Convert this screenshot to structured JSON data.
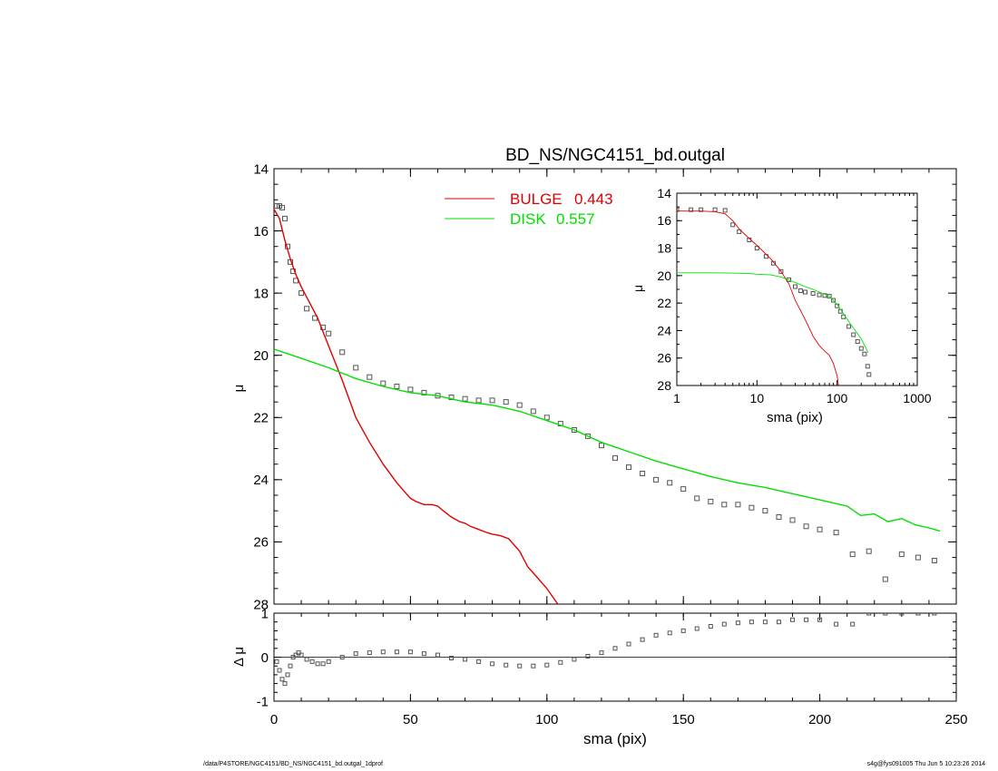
{
  "footer": {
    "left": "/data/P4STORE/NGC4151/BD_NS/NGC4151_bd.outgal_1dprof",
    "right": "s4g@fys091005  Thu Jun  5 10:23:26 2014"
  },
  "colors": {
    "bulge": "#e00000",
    "disk": "#00e000",
    "data": "#555555",
    "axis": "#000000"
  },
  "chart_data": [
    {
      "panel": "main",
      "type": "line",
      "title": "BD_NS/NGC4151_bd.outgal",
      "xlabel": "",
      "ylabel": "μ",
      "xlim": [
        0,
        250
      ],
      "ylim": [
        28,
        14
      ],
      "x_ticks": [
        0,
        50,
        100,
        150,
        200,
        250
      ],
      "y_ticks": [
        14,
        16,
        18,
        20,
        22,
        24,
        26,
        28
      ],
      "legend": [
        {
          "name": "BULGE",
          "value": "0.443",
          "color": "#e00000"
        },
        {
          "name": "DISK",
          "value": "0.557",
          "color": "#00e000"
        }
      ],
      "legend_position": "top-center",
      "series": [
        {
          "name": "data",
          "kind": "points",
          "x": [
            1,
            2,
            3,
            4,
            5,
            6,
            7,
            8,
            10,
            12,
            15,
            18,
            20,
            25,
            30,
            35,
            40,
            45,
            50,
            55,
            60,
            65,
            70,
            75,
            80,
            85,
            90,
            95,
            100,
            105,
            110,
            115,
            120,
            125,
            130,
            135,
            140,
            145,
            150,
            155,
            160,
            165,
            170,
            175,
            180,
            185,
            190,
            195,
            200,
            206,
            212,
            218,
            224,
            230,
            236,
            242
          ],
          "y": [
            15.2,
            15.2,
            15.25,
            15.6,
            16.5,
            17.0,
            17.3,
            17.6,
            18.0,
            18.5,
            18.8,
            19.1,
            19.3,
            19.9,
            20.4,
            20.7,
            20.9,
            21.0,
            21.1,
            21.2,
            21.3,
            21.35,
            21.4,
            21.45,
            21.45,
            21.5,
            21.6,
            21.8,
            22.0,
            22.2,
            22.4,
            22.6,
            22.9,
            23.3,
            23.6,
            23.8,
            24.0,
            24.1,
            24.3,
            24.6,
            24.7,
            24.8,
            24.8,
            24.9,
            25.0,
            25.2,
            25.3,
            25.5,
            25.6,
            25.7,
            26.4,
            26.3,
            27.2,
            26.4,
            26.5,
            26.6
          ]
        },
        {
          "name": "BULGE",
          "kind": "line",
          "color": "#e00000",
          "x": [
            0,
            2,
            4,
            6,
            8,
            10,
            13,
            16,
            20,
            25,
            30,
            35,
            40,
            45,
            50,
            52,
            55,
            58,
            60,
            62,
            65,
            68,
            70,
            72,
            75,
            78,
            80,
            83,
            86,
            90,
            93,
            96,
            100,
            104
          ],
          "y": [
            15.3,
            15.6,
            16.3,
            16.9,
            17.4,
            17.8,
            18.3,
            18.8,
            19.7,
            20.8,
            22.0,
            22.8,
            23.5,
            24.1,
            24.6,
            24.7,
            24.8,
            24.8,
            24.85,
            25.0,
            25.2,
            25.35,
            25.4,
            25.5,
            25.6,
            25.7,
            25.75,
            25.8,
            25.9,
            26.3,
            26.8,
            27.1,
            27.5,
            28.0
          ]
        },
        {
          "name": "DISK",
          "kind": "line",
          "color": "#00e000",
          "x": [
            0,
            10,
            20,
            30,
            40,
            50,
            60,
            70,
            80,
            90,
            100,
            110,
            120,
            130,
            140,
            150,
            160,
            170,
            180,
            190,
            200,
            205,
            210,
            215,
            220,
            225,
            230,
            235,
            240,
            244
          ],
          "y": [
            19.8,
            20.1,
            20.4,
            20.75,
            21.0,
            21.2,
            21.3,
            21.5,
            21.6,
            21.8,
            22.1,
            22.4,
            22.8,
            23.1,
            23.4,
            23.65,
            23.9,
            24.1,
            24.25,
            24.45,
            24.65,
            24.75,
            24.85,
            25.15,
            25.1,
            25.35,
            25.25,
            25.45,
            25.55,
            25.65
          ]
        }
      ]
    },
    {
      "panel": "inset",
      "type": "line",
      "xlabel": "sma (pix)",
      "ylabel": "μ",
      "xscale": "log",
      "xlim": [
        1,
        1000
      ],
      "ylim": [
        28,
        14
      ],
      "x_ticks": [
        1,
        10,
        100,
        1000
      ],
      "y_ticks": [
        14,
        16,
        18,
        20,
        22,
        24,
        26,
        28
      ],
      "series": [
        {
          "name": "data",
          "kind": "points",
          "x": [
            1,
            1.5,
            2,
            3,
            4,
            5,
            6,
            8,
            10,
            13,
            16,
            20,
            25,
            30,
            35,
            40,
            50,
            60,
            70,
            80,
            90,
            100,
            110,
            120,
            140,
            160,
            180,
            200,
            220,
            240,
            250
          ],
          "y": [
            15.2,
            15.2,
            15.2,
            15.2,
            15.25,
            16.3,
            16.8,
            17.4,
            18.0,
            18.6,
            19.1,
            19.7,
            20.3,
            20.8,
            21.1,
            21.2,
            21.3,
            21.4,
            21.45,
            21.5,
            21.8,
            22.2,
            22.6,
            23.0,
            23.7,
            24.3,
            24.8,
            25.3,
            25.7,
            26.6,
            27.2
          ]
        },
        {
          "name": "BULGE",
          "kind": "line",
          "color": "#e00000",
          "x": [
            1,
            2,
            3,
            4,
            5,
            6,
            8,
            10,
            15,
            20,
            25,
            30,
            40,
            50,
            60,
            70,
            80,
            90,
            100,
            104
          ],
          "y": [
            15.3,
            15.3,
            15.35,
            15.5,
            16.0,
            16.6,
            17.3,
            17.8,
            18.8,
            19.7,
            20.6,
            21.8,
            23.2,
            24.4,
            25.1,
            25.5,
            25.8,
            26.4,
            27.3,
            28.0
          ]
        },
        {
          "name": "DISK",
          "kind": "line",
          "color": "#00e000",
          "x": [
            1,
            2,
            3,
            5,
            8,
            10,
            15,
            20,
            30,
            40,
            50,
            60,
            80,
            100,
            150,
            200,
            244
          ],
          "y": [
            19.8,
            19.8,
            19.8,
            19.82,
            19.85,
            19.9,
            19.95,
            20.1,
            20.5,
            20.8,
            21.0,
            21.2,
            21.5,
            22.1,
            23.6,
            24.6,
            25.6
          ]
        }
      ]
    },
    {
      "panel": "residual",
      "type": "scatter",
      "xlabel": "sma (pix)",
      "ylabel": "Δ μ",
      "xlim": [
        0,
        250
      ],
      "ylim": [
        -1,
        1
      ],
      "x_ticks": [
        0,
        50,
        100,
        150,
        200,
        250
      ],
      "y_ticks": [
        -1,
        0,
        1
      ],
      "zero_line": true,
      "series": [
        {
          "name": "residuals",
          "kind": "points",
          "x": [
            1,
            2,
            3,
            4,
            5,
            6,
            7,
            8,
            9,
            10,
            12,
            14,
            16,
            18,
            20,
            25,
            30,
            35,
            40,
            45,
            50,
            55,
            60,
            65,
            70,
            75,
            80,
            85,
            90,
            95,
            100,
            105,
            110,
            115,
            120,
            125,
            130,
            135,
            140,
            145,
            150,
            155,
            160,
            165,
            170,
            175,
            180,
            185,
            190,
            195,
            200,
            206,
            212,
            218,
            224,
            230,
            236,
            242
          ],
          "y": [
            -0.1,
            -0.3,
            -0.5,
            -0.6,
            -0.4,
            -0.2,
            0.0,
            0.05,
            0.1,
            0.05,
            -0.05,
            -0.1,
            -0.15,
            -0.15,
            -0.1,
            0.0,
            0.08,
            0.1,
            0.12,
            0.12,
            0.12,
            0.08,
            0.05,
            -0.02,
            -0.05,
            -0.1,
            -0.15,
            -0.18,
            -0.2,
            -0.2,
            -0.18,
            -0.12,
            -0.05,
            0.02,
            0.1,
            0.2,
            0.3,
            0.4,
            0.5,
            0.55,
            0.6,
            0.65,
            0.7,
            0.75,
            0.78,
            0.8,
            0.8,
            0.8,
            0.85,
            0.85,
            0.85,
            0.75,
            0.75,
            1.0,
            1.0,
            1.0,
            1.0,
            1.0
          ]
        }
      ]
    }
  ]
}
